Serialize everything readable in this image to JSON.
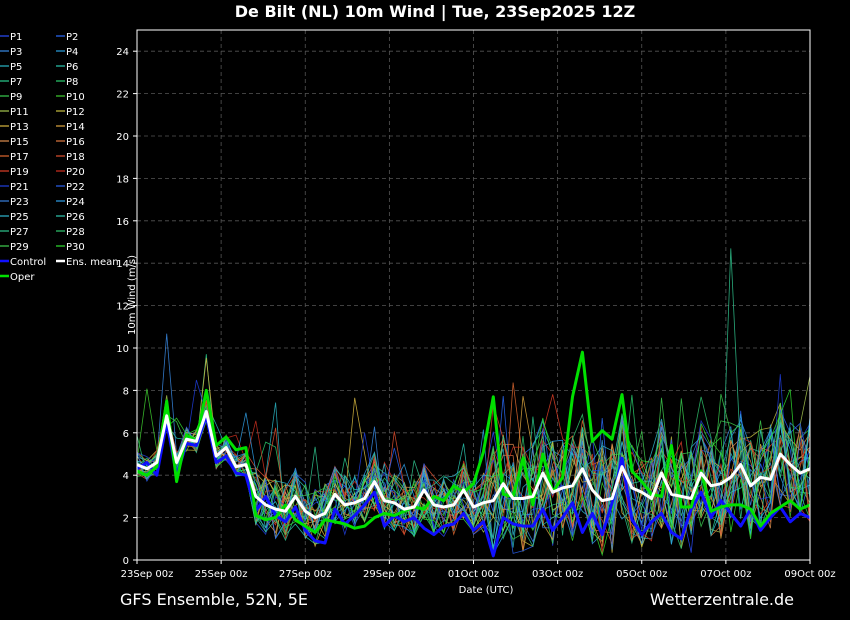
{
  "header": {
    "title": "De Bilt  (NL)  10m Wind | Tue, 23Sep2025 12Z"
  },
  "footer": {
    "left": "GFS Ensemble, 52N, 5E",
    "right": "Wetterzentrale.de"
  },
  "colors": {
    "background": "#000000",
    "grid": "#555555",
    "axes": "#ffffff",
    "mean": "#ffffff",
    "oper": "#00e000",
    "control": "#1010ff"
  },
  "chart_data": {
    "type": "line",
    "xlabel": "Date (UTC)",
    "ylabel": "10m Wind (m/s)",
    "ylim": [
      0,
      25
    ],
    "yticks": [
      0,
      2,
      4,
      6,
      8,
      10,
      12,
      14,
      16,
      18,
      20,
      22,
      24
    ],
    "x_start": "23Sep 00z",
    "x_step_hours": 6,
    "x_count": 69,
    "xticks": [
      "23Sep 00z",
      "25Sep 00z",
      "27Sep 00z",
      "29Sep 00z",
      "01Oct 00z",
      "03Oct 00z",
      "05Oct 00z",
      "07Oct 00z",
      "09Oct 00z"
    ],
    "grid": true,
    "legend_position": "left-outside",
    "legend": [
      {
        "name": "P1",
        "color": "#2a4cff"
      },
      {
        "name": "P2",
        "color": "#2a6cff"
      },
      {
        "name": "P3",
        "color": "#3a8ce8"
      },
      {
        "name": "P4",
        "color": "#2aa0e0"
      },
      {
        "name": "P5",
        "color": "#2ab8c8"
      },
      {
        "name": "P6",
        "color": "#2ac8b0"
      },
      {
        "name": "P7",
        "color": "#2ad090"
      },
      {
        "name": "P8",
        "color": "#2ad070"
      },
      {
        "name": "P9",
        "color": "#3ad050"
      },
      {
        "name": "P10",
        "color": "#40d030"
      },
      {
        "name": "P11",
        "color": "#a8c850"
      },
      {
        "name": "P12",
        "color": "#c8c040"
      },
      {
        "name": "P13",
        "color": "#d8b840"
      },
      {
        "name": "P14",
        "color": "#e0a840"
      },
      {
        "name": "P15",
        "color": "#e09050"
      },
      {
        "name": "P16",
        "color": "#e07840"
      },
      {
        "name": "P17",
        "color": "#e06830"
      },
      {
        "name": "P18",
        "color": "#e05030"
      },
      {
        "name": "P19",
        "color": "#e04028"
      },
      {
        "name": "P20",
        "color": "#d03020"
      },
      {
        "name": "P21",
        "color": "#2040e0"
      },
      {
        "name": "P22",
        "color": "#2a60f0"
      },
      {
        "name": "P23",
        "color": "#3a80e0"
      },
      {
        "name": "P24",
        "color": "#30a0e8"
      },
      {
        "name": "P25",
        "color": "#30b8d0"
      },
      {
        "name": "P26",
        "color": "#30c8b0"
      },
      {
        "name": "P27",
        "color": "#30c890"
      },
      {
        "name": "P28",
        "color": "#30c870"
      },
      {
        "name": "P29",
        "color": "#40d050"
      },
      {
        "name": "P30",
        "color": "#30e030"
      },
      {
        "name": "Control",
        "color": "#1010ff"
      },
      {
        "name": "Ens. mean",
        "color": "#ffffff"
      },
      {
        "name": "Oper",
        "color": "#00e000"
      }
    ],
    "series": [
      {
        "name": "Ens. mean",
        "values": [
          4.5,
          4.3,
          4.6,
          6.8,
          4.6,
          5.7,
          5.6,
          7.0,
          4.9,
          5.3,
          4.4,
          4.5,
          3.0,
          2.6,
          2.4,
          2.3,
          3.0,
          2.3,
          2.0,
          2.2,
          3.1,
          2.6,
          2.7,
          2.9,
          3.7,
          2.8,
          2.7,
          2.4,
          2.5,
          3.3,
          2.6,
          2.5,
          2.6,
          3.3,
          2.5,
          2.7,
          2.8,
          3.6,
          2.9,
          2.9,
          3.0,
          4.1,
          3.2,
          3.4,
          3.5,
          4.3,
          3.3,
          2.8,
          2.9,
          4.4,
          3.4,
          3.2,
          2.9,
          4.1,
          3.1,
          3.0,
          2.9,
          4.1,
          3.5,
          3.6,
          3.9,
          4.5,
          3.5,
          3.9,
          3.8,
          5.0,
          4.5,
          4.1,
          4.3
        ]
      },
      {
        "name": "Oper",
        "values": [
          4.2,
          4.0,
          4.4,
          7.5,
          3.7,
          5.9,
          5.6,
          8.0,
          5.4,
          5.8,
          5.2,
          5.3,
          2.1,
          1.9,
          2.0,
          2.6,
          1.9,
          1.6,
          1.3,
          1.9,
          1.8,
          1.7,
          1.5,
          1.6,
          2.0,
          2.2,
          2.1,
          2.3,
          2.5,
          2.4,
          3.0,
          2.8,
          3.5,
          3.2,
          3.6,
          5.1,
          7.7,
          3.1,
          3.0,
          4.8,
          2.6,
          5.0,
          3.2,
          3.9,
          7.7,
          9.8,
          5.6,
          6.1,
          5.7,
          7.8,
          4.2,
          3.7,
          3.1,
          3.0,
          5.4,
          2.5,
          2.5,
          4.2,
          2.3,
          2.5,
          2.6,
          2.6,
          2.4,
          1.6,
          2.2,
          2.5,
          2.8,
          2.4,
          2.6
        ]
      },
      {
        "name": "Control",
        "values": [
          4.3,
          4.6,
          4.0,
          6.5,
          4.0,
          5.5,
          5.4,
          6.8,
          4.6,
          4.9,
          4.1,
          4.0,
          2.3,
          3.0,
          2.1,
          1.8,
          2.5,
          1.4,
          0.9,
          0.8,
          2.4,
          1.7,
          2.1,
          2.6,
          3.2,
          1.6,
          2.1,
          1.8,
          2.0,
          1.5,
          1.2,
          1.6,
          1.7,
          2.2,
          1.4,
          1.8,
          0.2,
          2.0,
          1.7,
          1.6,
          1.6,
          2.4,
          1.4,
          2.0,
          2.7,
          1.3,
          2.2,
          1.2,
          2.7,
          4.8,
          1.9,
          1.2,
          1.8,
          2.2,
          1.3,
          1.0,
          2.4,
          3.2,
          2.0,
          2.8,
          2.2,
          1.6,
          2.4,
          1.4,
          2.0,
          2.5,
          1.8,
          2.2,
          2.0
        ]
      }
    ]
  }
}
